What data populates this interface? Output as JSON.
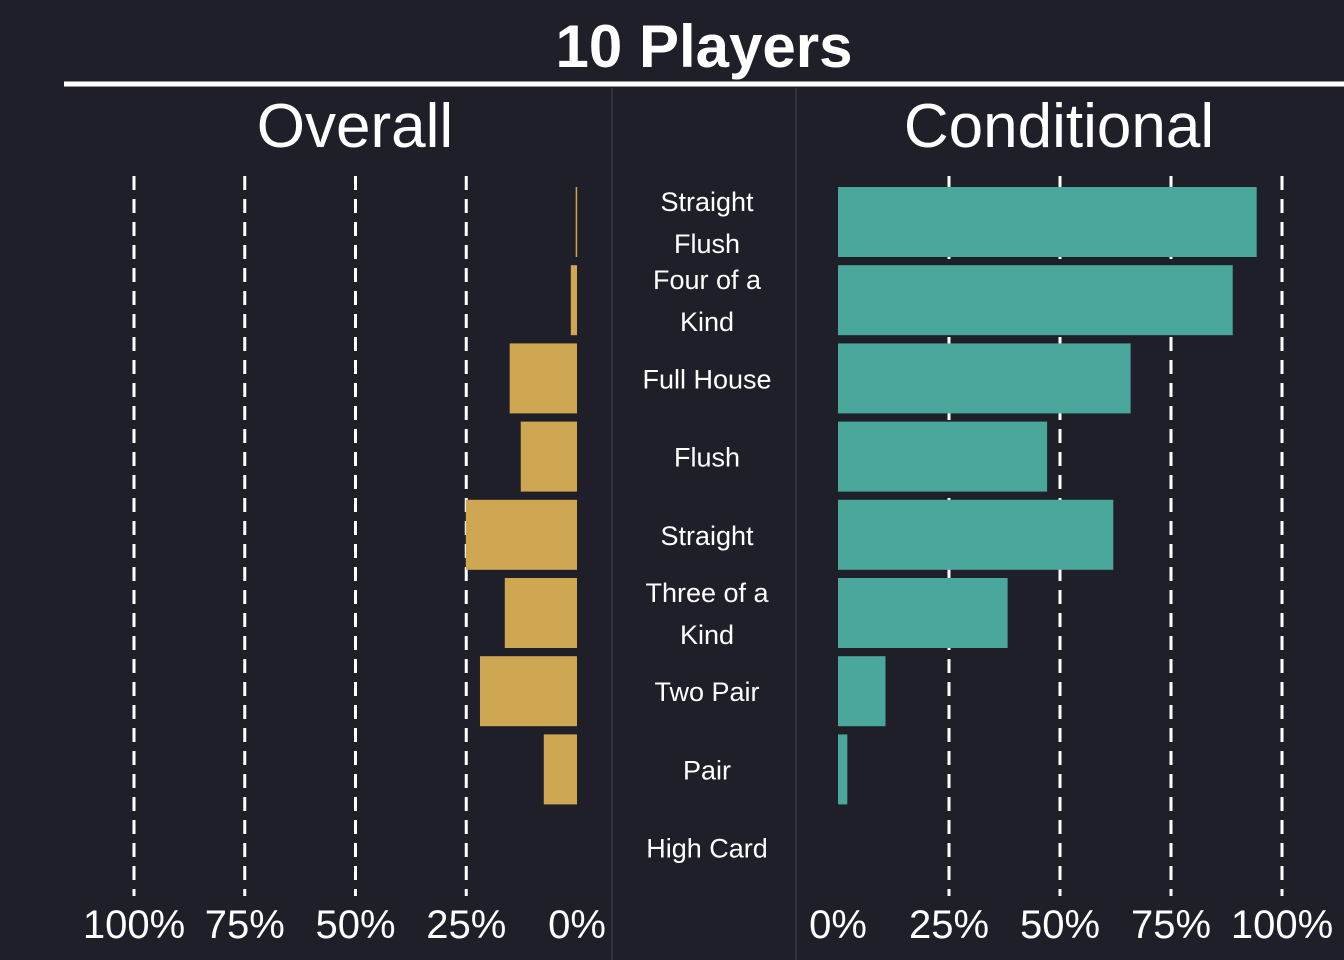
{
  "title": "10 Players",
  "colors": {
    "background": "#1f1f29",
    "overall": "#cfa753",
    "conditional": "#4aa79c",
    "text": "#ffffff",
    "grid": "#ffffff"
  },
  "chart_data": [
    {
      "type": "bar",
      "orientation": "horizontal",
      "direction": "right-to-left",
      "panel_title": "Overall",
      "categories": [
        "Straight Flush",
        "Four of a Kind",
        "Full House",
        "Flush",
        "Straight",
        "Three of a Kind",
        "Two Pair",
        "Pair",
        "High Card"
      ],
      "values": [
        0.3,
        1.4,
        15.2,
        12.7,
        25.1,
        16.3,
        21.9,
        7.5,
        0
      ],
      "xlim": [
        0,
        100
      ],
      "ticks": [
        "100%",
        "75%",
        "50%",
        "25%",
        "0%"
      ],
      "tick_values": [
        100,
        75,
        50,
        25,
        0
      ],
      "grid": true,
      "color": "#cfa753"
    },
    {
      "type": "bar",
      "orientation": "horizontal",
      "direction": "left-to-right",
      "panel_title": "Conditional",
      "categories": [
        "Straight Flush",
        "Four of a Kind",
        "Full House",
        "Flush",
        "Straight",
        "Three of a Kind",
        "Two Pair",
        "Pair",
        "High Card"
      ],
      "values": [
        94.3,
        88.9,
        65.9,
        47.1,
        62.0,
        38.2,
        10.7,
        2.1,
        0
      ],
      "xlim": [
        0,
        100
      ],
      "ticks": [
        "0%",
        "25%",
        "50%",
        "75%",
        "100%"
      ],
      "tick_values": [
        0,
        25,
        50,
        75,
        100
      ],
      "grid": true,
      "color": "#4aa79c"
    }
  ],
  "category_labels": [
    [
      "Straight",
      "Flush"
    ],
    [
      "Four of a",
      "Kind"
    ],
    [
      "Full House"
    ],
    [
      "Flush"
    ],
    [
      "Straight"
    ],
    [
      "Three of a",
      "Kind"
    ],
    [
      "Two Pair"
    ],
    [
      "Pair"
    ],
    [
      "High Card"
    ]
  ]
}
